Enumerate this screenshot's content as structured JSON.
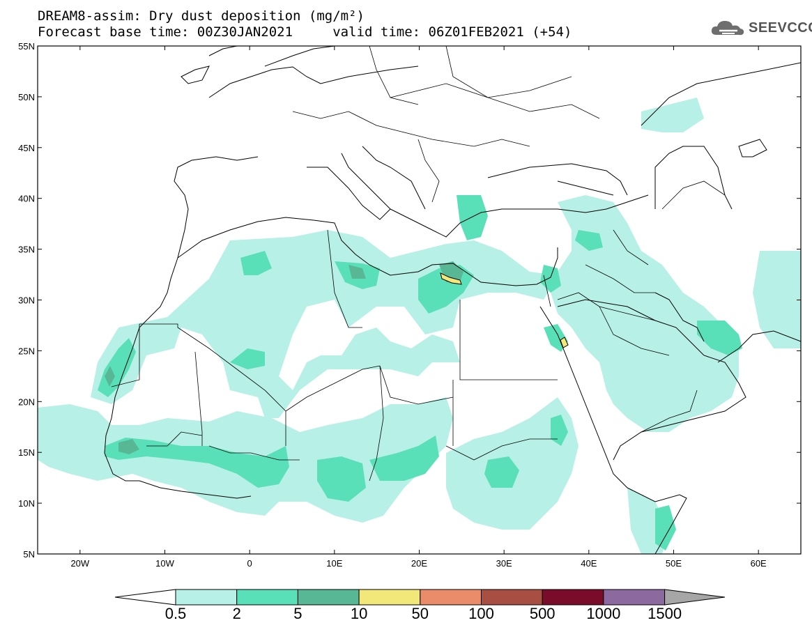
{
  "header": {
    "title_line1": "DREAM8-assim: Dry dust deposition (mg/m²)",
    "title_line2": "Forecast base time: 00Z30JAN2021     valid time: 06Z01FEB2021 (+54)",
    "logo_text": "SEEVCCC"
  },
  "map": {
    "lon_range": [
      -25,
      65
    ],
    "lat_range": [
      5,
      55
    ],
    "lat_ticks": [
      "5N",
      "10N",
      "15N",
      "20N",
      "25N",
      "30N",
      "35N",
      "40N",
      "45N",
      "50N",
      "55N"
    ],
    "lon_ticks": [
      "20W",
      "10W",
      "0",
      "10E",
      "20E",
      "30E",
      "40E",
      "50E",
      "60E"
    ]
  },
  "colorbar": {
    "labels": [
      "0.5",
      "2",
      "5",
      "10",
      "50",
      "100",
      "500",
      "1000",
      "1500"
    ],
    "colors": [
      "#b7f0e6",
      "#5ae0b8",
      "#58b896",
      "#f2e87a",
      "#ea8c6a",
      "#a84e42",
      "#7a0c2a",
      "#8c6aa0"
    ],
    "under_color": "#ffffff",
    "over_color": "#a6a6a6"
  },
  "colors": {
    "light": "#b7f0e6",
    "medium": "#5ae0b8",
    "dark": "#58b896",
    "yellow": "#f2e87a",
    "border": "#000000"
  }
}
